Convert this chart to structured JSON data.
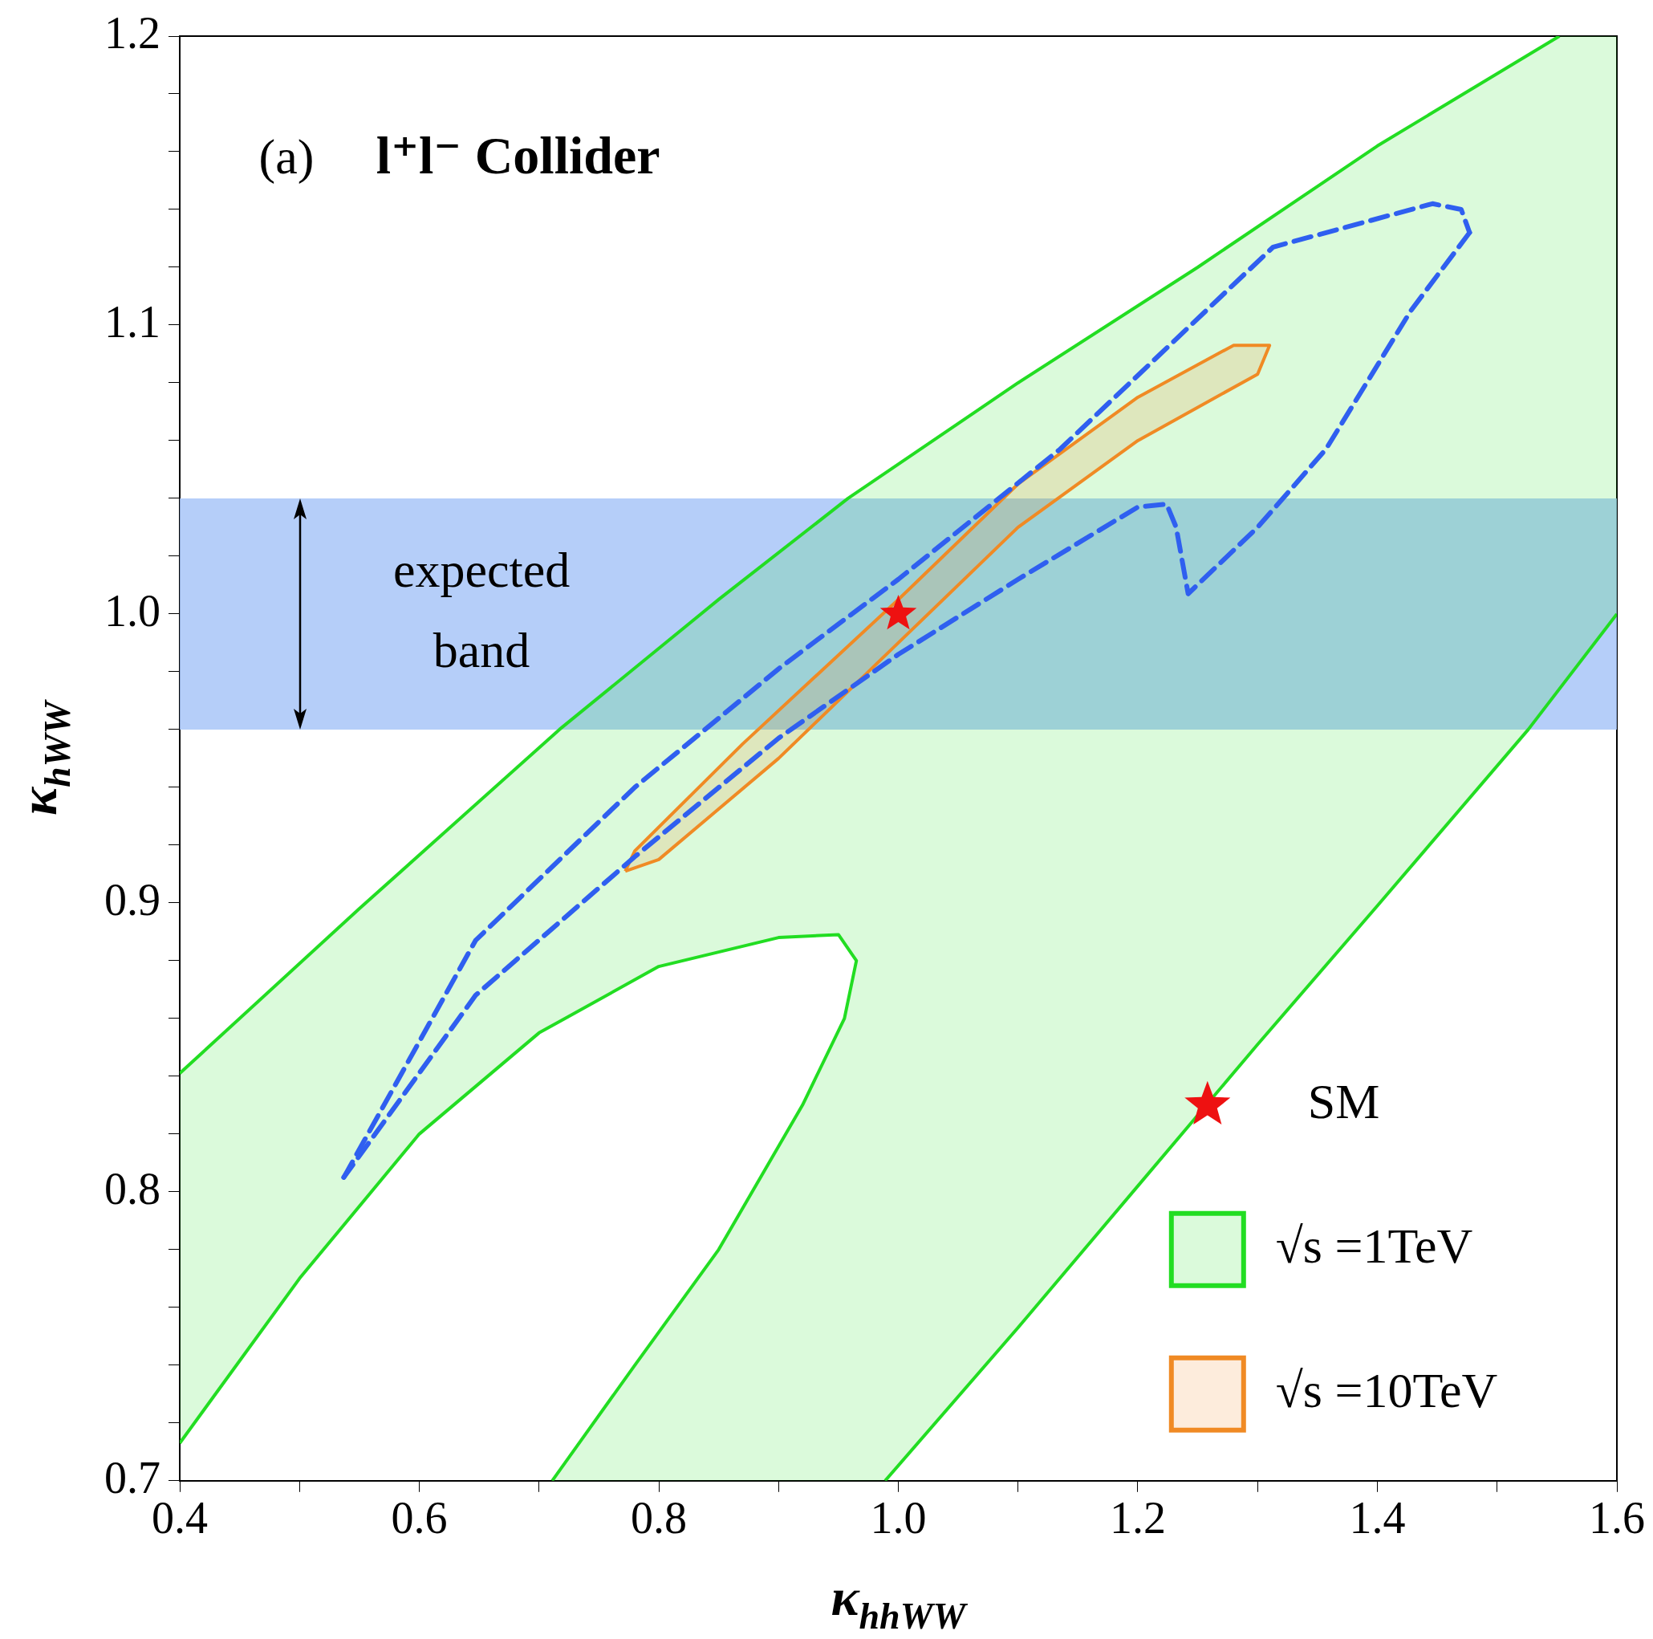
{
  "chart_data": {
    "type": "line",
    "title": "(a)   l⁺l⁻ Collider",
    "xlabel": "κ$_{hhWW}$",
    "ylabel": "κ$_{hWW}$",
    "xlim": [
      0.4,
      1.6
    ],
    "ylim": [
      0.7,
      1.2
    ],
    "xticks": [
      0.4,
      {
        "value": 0.5,
        "label": null
      },
      0.6,
      {
        "value": 0.7,
        "label": null
      },
      0.8,
      {
        "value": 0.9,
        "label": null
      },
      {
        "value": 1,
        "label": "1.0"
      },
      {
        "value": 1.1,
        "label": null
      },
      1.2,
      {
        "value": 1.3,
        "label": null
      },
      1.4,
      {
        "value": 1.5,
        "label": null
      },
      1.6
    ],
    "yticks": [
      0.7,
      {
        "value": 0.72,
        "label": null
      },
      {
        "value": 0.74,
        "label": null
      },
      {
        "value": 0.76,
        "label": null
      },
      {
        "value": 0.78,
        "label": null
      },
      0.8,
      {
        "value": 0.82,
        "label": null
      },
      {
        "value": 0.84,
        "label": null
      },
      {
        "value": 0.86,
        "label": null
      },
      {
        "value": 0.88,
        "label": null
      },
      0.9,
      {
        "value": 0.92,
        "label": null
      },
      {
        "value": 0.94,
        "label": null
      },
      {
        "value": 0.96,
        "label": null
      },
      {
        "value": 0.98,
        "label": null
      },
      {
        "value": 1,
        "label": "1.0"
      },
      {
        "value": 1.02,
        "label": null
      },
      {
        "value": 1.04,
        "label": null
      },
      {
        "value": 1.06,
        "label": null
      },
      {
        "value": 1.08,
        "label": null
      },
      1.1,
      {
        "value": 1.12,
        "label": null
      },
      {
        "value": 1.14,
        "label": null
      },
      {
        "value": 1.16,
        "label": null
      },
      {
        "value": 1.18,
        "label": null
      },
      1.2
    ],
    "grid": false,
    "legend": "bottom right",
    "bands": [
      {
        "axis": "y",
        "from": 0.96,
        "to": 1.04,
        "label": "expected band",
        "color": "#a8c6f8"
      }
    ],
    "series": [
      {
        "name": "√s =1TeV",
        "type": "area",
        "color": "#22dd22",
        "x": [
          0.4,
          0.55,
          0.717,
          0.85,
          0.958,
          1.1,
          1.25,
          1.4,
          1.552,
          1.6,
          1.6,
          1.526,
          1.4,
          1.3,
          1.2,
          1.1,
          0.989,
          0.711,
          0.78,
          0.85,
          0.92,
          0.955,
          0.965,
          0.95,
          0.9,
          0.8,
          0.7,
          0.6,
          0.5,
          0.4,
          0.4
        ],
        "values": [
          0.841,
          0.898,
          0.96,
          1.005,
          1.04,
          1.08,
          1.12,
          1.162,
          1.2,
          1.2,
          1,
          0.96,
          0.899,
          0.851,
          0.802,
          0.753,
          0.7,
          0.7,
          0.74,
          0.78,
          0.83,
          0.86,
          0.88,
          0.889,
          0.888,
          0.878,
          0.855,
          0.82,
          0.77,
          0.713,
          0.841
        ]
      },
      {
        "type": "line",
        "line_style": "dashed",
        "color": "#2f5ff0",
        "x": [
          0.537,
          0.647,
          0.78,
          0.9,
          1,
          1.135,
          1.313,
          1.446,
          1.47,
          1.477
        ],
        "values": [
          0.805,
          0.887,
          0.94,
          0.981,
          1.012,
          1.057,
          1.127,
          1.142,
          1.14,
          1.132
        ]
      },
      {
        "type": "line",
        "line_style": "dashed",
        "color": "#2f5ff0",
        "x": [
          1.477,
          1.428,
          1.357,
          1.3,
          1.242,
          1.232,
          1.224,
          1.2,
          1.1,
          1,
          0.9,
          0.78,
          0.647,
          0.537
        ],
        "values": [
          1.132,
          1.105,
          1.057,
          1.03,
          1.007,
          1.03,
          1.038,
          1.037,
          1.012,
          0.986,
          0.957,
          0.916,
          0.868,
          0.805
        ]
      },
      {
        "name": "√s =10TeV",
        "type": "area",
        "color": "#f08a24",
        "x": [
          0.772,
          0.78,
          0.87,
          1,
          1.1,
          1.2,
          1.28,
          1.31,
          1.3,
          1.2,
          1.1,
          1,
          0.9,
          0.8,
          0.772
        ],
        "values": [
          0.911,
          0.918,
          0.955,
          1.005,
          1.045,
          1.075,
          1.093,
          1.093,
          1.083,
          1.06,
          1.03,
          0.99,
          0.95,
          0.915,
          0.911
        ]
      },
      {
        "name": "SM",
        "type": "scatter",
        "marker": "star",
        "color": "#ee1111",
        "x": [
          1
        ],
        "values": [
          1
        ]
      }
    ]
  }
}
